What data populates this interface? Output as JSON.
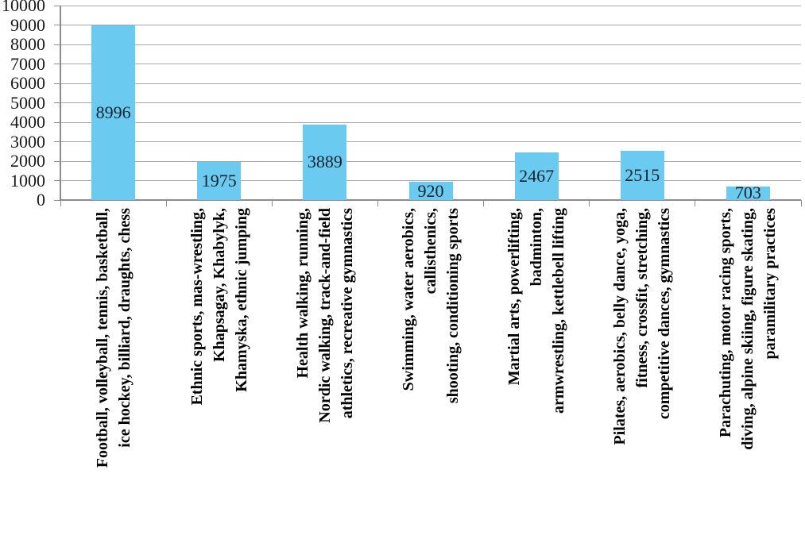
{
  "chart_data": {
    "type": "bar",
    "title": "",
    "xlabel": "",
    "ylabel": "",
    "ylim": [
      0,
      10000
    ],
    "yticks": [
      0,
      1000,
      2000,
      3000,
      4000,
      5000,
      6000,
      7000,
      8000,
      9000,
      10000
    ],
    "grid": true,
    "legend": false,
    "bar_color": "#6BCAF0",
    "gridline_color": "#A8A8A8",
    "axis_color": "#8C8C8C",
    "value_label_color": "#17242F",
    "categories": [
      "Football, volleyball, tennis, basketball, ice hockey, billiard, draughts, chess",
      "Ethnic sports, mas-wrestling, Khapsagay, Khabylyk, Khamyska, ethnic jumping",
      "Health walking, running, Nordic walking, track-and-field athletics, recreative gymnastics",
      "Swimming, water aerobics, callisthenics, shooting, conditioning sports",
      "Martial arts, powerlifting, badminton, armwrestling, kettlebell lifting",
      "Pilates, aerobics, belly dance, yoga, fitness, crossfit, stretching, competitive dances, gymnastics",
      "Parachuting, motor racing sports, diving, alpine skiing, figure skating, paramilitary practices"
    ],
    "category_label_lines": [
      [
        "Football, volleyball, tennis, basketball,",
        "ice hockey, billiard, draughts, chess"
      ],
      [
        "Ethnic sports, mas-wrestling,",
        "Khapsagay, Khabylyk,",
        "Khamyska, ethnic jumping"
      ],
      [
        "Health walking, running,",
        "Nordic walking, track-and-field",
        "athletics, recreative gymnastics"
      ],
      [
        "Swimming, water aerobics,",
        "callisthenics,",
        "shooting, conditioning sports"
      ],
      [
        "Martial arts, powerlifting,",
        "badminton,",
        "armwrestling, kettlebell lifting"
      ],
      [
        "Pilates, aerobics, belly dance, yoga,",
        "fitness, crossfit, stretching,",
        "competitive dances, gymnastics"
      ],
      [
        "Parachuting, motor racing sports,",
        "diving, alpine skiing, figure skating,",
        "paramilitary practices"
      ]
    ],
    "values": [
      8996,
      1975,
      3889,
      920,
      2467,
      2515,
      703
    ]
  }
}
